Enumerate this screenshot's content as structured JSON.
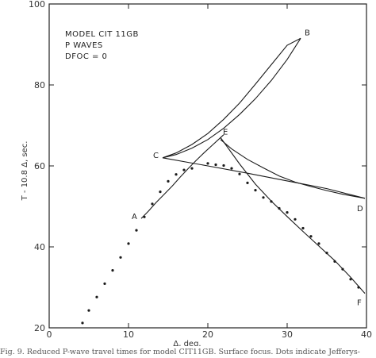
{
  "chart_data": {
    "type": "line",
    "title": "",
    "xlabel": "Δ, deg.",
    "ylabel": "T - 10.8 Δ, sec.",
    "xlim": [
      0,
      40
    ],
    "ylim": [
      20,
      100
    ],
    "x_ticks": [
      0,
      10,
      20,
      30,
      40
    ],
    "y_ticks": [
      20,
      40,
      60,
      80,
      100
    ],
    "grid": false,
    "annotation_lines": [
      "MODEL CIT 11GB",
      "P WAVES",
      "DFOC = 0"
    ],
    "series": [
      {
        "values": [
          [
            11.6,
            47
          ],
          [
            12.5,
            48.8
          ],
          [
            13.5,
            51
          ],
          [
            14.5,
            53
          ],
          [
            15.5,
            55
          ],
          [
            16.5,
            57.2
          ],
          [
            17.5,
            59.3
          ],
          [
            18.5,
            61.3
          ],
          [
            19.5,
            63.2
          ],
          [
            20.5,
            65
          ],
          [
            21.5,
            66.8
          ],
          [
            22,
            67.7
          ]
        ]
      },
      {
        "values": [
          [
            14.3,
            62
          ],
          [
            16,
            62.8
          ],
          [
            18,
            64.4
          ],
          [
            20,
            66.5
          ],
          [
            22,
            69.3
          ],
          [
            24,
            72.7
          ],
          [
            26,
            76.6
          ],
          [
            28,
            81.1
          ],
          [
            30,
            86.3
          ],
          [
            31.7,
            91.5
          ]
        ]
      },
      {
        "values": [
          [
            14.3,
            62
          ],
          [
            16,
            63.2
          ],
          [
            18,
            65.3
          ],
          [
            20,
            68
          ],
          [
            22,
            71.5
          ],
          [
            24,
            75.5
          ],
          [
            26,
            80.2
          ],
          [
            28,
            85
          ],
          [
            30,
            89.8
          ],
          [
            31.7,
            91.5
          ]
        ]
      },
      {
        "values": [
          [
            14.3,
            62
          ],
          [
            20,
            60
          ],
          [
            25,
            58.2
          ],
          [
            30,
            56.3
          ],
          [
            35,
            54.4
          ],
          [
            39.8,
            52
          ]
        ]
      },
      {
        "values": [
          [
            21.6,
            66.5
          ],
          [
            23,
            64.2
          ],
          [
            25,
            61.6
          ],
          [
            27,
            59.5
          ],
          [
            29,
            57.5
          ],
          [
            31,
            56
          ],
          [
            33,
            54.9
          ],
          [
            35,
            53.9
          ],
          [
            37,
            53
          ],
          [
            39.8,
            52
          ]
        ]
      },
      {
        "values": [
          [
            21.6,
            67
          ],
          [
            24,
            60.5
          ],
          [
            26,
            55.5
          ],
          [
            28,
            51.3
          ],
          [
            30,
            47.5
          ],
          [
            32,
            43.8
          ],
          [
            34,
            40.2
          ],
          [
            36,
            36.6
          ],
          [
            38,
            32.5
          ],
          [
            39.8,
            28.5
          ]
        ]
      }
    ],
    "points_label_positions": [
      {
        "label": "A",
        "x": 11.6,
        "y": 47.5
      },
      {
        "label": "B",
        "x": 31.7,
        "y": 91.5
      },
      {
        "label": "C",
        "x": 14.3,
        "y": 62
      },
      {
        "label": "D",
        "x": 39.8,
        "y": 52
      },
      {
        "label": "E",
        "x": 21.6,
        "y": 67
      },
      {
        "label": "F",
        "x": 39.8,
        "y": 28.5
      }
    ],
    "observed_points": [
      [
        4.2,
        21.2
      ],
      [
        5,
        24.3
      ],
      [
        6,
        27.6
      ],
      [
        7,
        30.9
      ],
      [
        8,
        34.2
      ],
      [
        9,
        37.4
      ],
      [
        10,
        40.8
      ],
      [
        11,
        44.1
      ],
      [
        12,
        47.4
      ],
      [
        13,
        50.6
      ],
      [
        14,
        53.6
      ],
      [
        15,
        56.2
      ],
      [
        16,
        57.9
      ],
      [
        17,
        59
      ],
      [
        18,
        59.4
      ],
      [
        20,
        60.6
      ],
      [
        21,
        60.3
      ],
      [
        22,
        60.1
      ],
      [
        23,
        59.4
      ],
      [
        24,
        58
      ],
      [
        25,
        55.8
      ],
      [
        26,
        54
      ],
      [
        27,
        52.2
      ],
      [
        28,
        51.2
      ],
      [
        29,
        49.5
      ],
      [
        30,
        48.5
      ],
      [
        31,
        46.8
      ],
      [
        32,
        44.6
      ],
      [
        33,
        42.6
      ],
      [
        34,
        40.8
      ],
      [
        35,
        38.5
      ],
      [
        36,
        36.4
      ],
      [
        37,
        34.5
      ],
      [
        38,
        32
      ],
      [
        39,
        30
      ]
    ]
  },
  "caption": "Fig. 9. Reduced P-wave travel times for model CIT11GB. Surface focus. Dots indicate Jefferys-"
}
